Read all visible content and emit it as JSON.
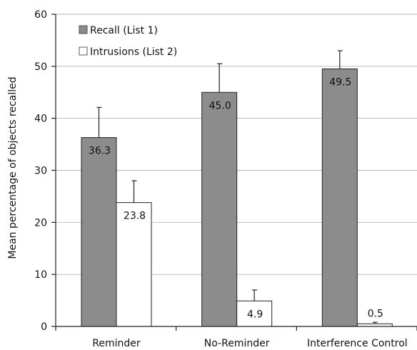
{
  "chart_data": {
    "type": "bar",
    "title": "",
    "xlabel": "",
    "ylabel": "Mean percentage of objects recalled",
    "ylim": [
      0,
      60
    ],
    "yticks": [
      0,
      10,
      20,
      30,
      40,
      50,
      60
    ],
    "grid": true,
    "legend_position": "top-left",
    "categories": [
      "Reminder",
      "No-Reminder",
      "Interference Control"
    ],
    "series": [
      {
        "name": "Recall (List 1)",
        "color": "#8c8c8c",
        "values": [
          36.3,
          45.0,
          49.5
        ],
        "labels": [
          "36.3",
          "45.0",
          "49.5"
        ],
        "error": [
          5.8,
          5.5,
          3.5
        ]
      },
      {
        "name": "Intrusions (List 2)",
        "color": "#ffffff",
        "values": [
          23.8,
          4.9,
          0.5
        ],
        "labels": [
          "23.8",
          "4.9",
          "0.5"
        ],
        "error": [
          4.2,
          2.1,
          0.3
        ]
      }
    ]
  }
}
